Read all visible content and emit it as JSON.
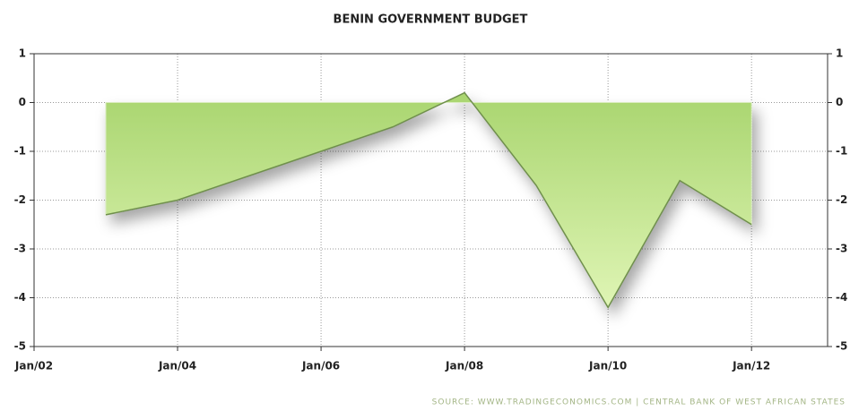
{
  "chart_data": {
    "type": "area",
    "title": "BENIN GOVERNMENT BUDGET",
    "source": "SOURCE: WWW.TRADINGECONOMICS.COM | CENTRAL BANK OF WEST AFRICAN STATES",
    "x": [
      2003,
      2004,
      2005,
      2006,
      2007,
      2008,
      2009,
      2010,
      2011,
      2012
    ],
    "values": [
      -2.3,
      -2.0,
      -1.5,
      -1.0,
      -0.5,
      0.2,
      -1.7,
      -4.2,
      -1.6,
      -2.5
    ],
    "color": "#b5df7e",
    "line_color": "#6f8f4c",
    "xlim": [
      2002,
      2013.06
    ],
    "xticks": [
      {
        "value": 2002,
        "label": "Jan/02"
      },
      {
        "value": 2004,
        "label": "Jan/04"
      },
      {
        "value": 2006,
        "label": "Jan/06"
      },
      {
        "value": 2008,
        "label": "Jan/08"
      },
      {
        "value": 2010,
        "label": "Jan/10"
      },
      {
        "value": 2012,
        "label": "Jan/12"
      }
    ],
    "ylim": [
      -5,
      1
    ],
    "yticks": [
      -5,
      -4,
      -3,
      -2,
      -1,
      0,
      1
    ],
    "grid": true
  }
}
